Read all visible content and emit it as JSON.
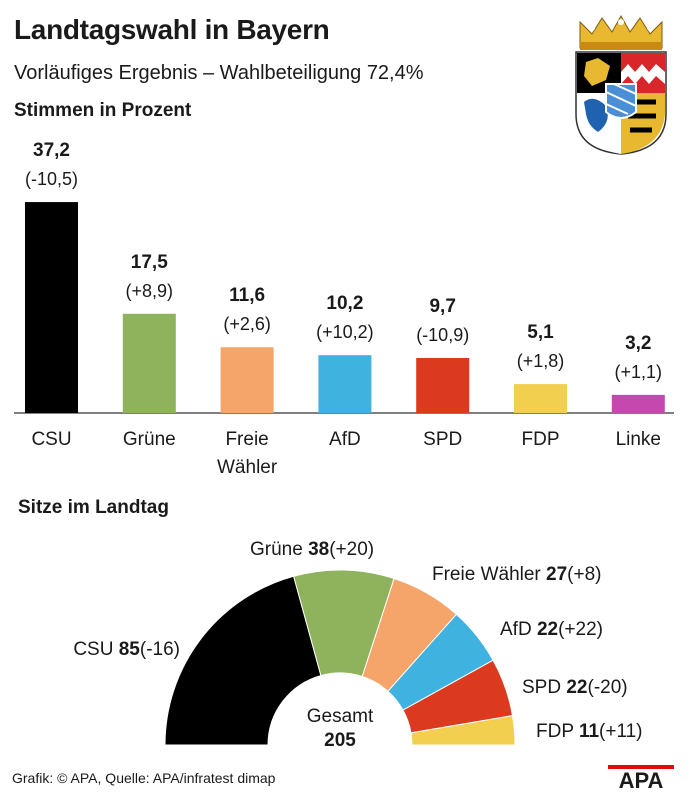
{
  "header": {
    "title": "Landtagswahl in Bayern",
    "subtitle": "Vorläufiges Ergebnis – Wahlbeteiligung 72,4%"
  },
  "footer": {
    "credit": "Grafik: © APA, Quelle: APA/infratest dimap",
    "logo_text": "APA"
  },
  "chart_data": [
    {
      "type": "bar",
      "title": "Stimmen in Prozent",
      "categories": [
        "CSU",
        "Grüne",
        "Freie Wähler",
        "AfD",
        "SPD",
        "FDP",
        "Linke"
      ],
      "category_lines": [
        [
          "CSU"
        ],
        [
          "Grüne"
        ],
        [
          "Freie",
          "Wähler"
        ],
        [
          "AfD"
        ],
        [
          "SPD"
        ],
        [
          "FDP"
        ],
        [
          "Linke"
        ]
      ],
      "values": [
        37.2,
        17.5,
        11.6,
        10.2,
        9.7,
        5.1,
        3.2
      ],
      "value_labels": [
        "37,2",
        "17,5",
        "11,6",
        "10,2",
        "9,7",
        "5,1",
        "3,2"
      ],
      "change_labels": [
        "(-10,5)",
        "(+8,9)",
        "(+2,6)",
        "(+10,2)",
        "(-10,9)",
        "(+1,8)",
        "(+1,1)"
      ],
      "colors": [
        "#000000",
        "#8fb35c",
        "#f5a46a",
        "#3fb2e0",
        "#dc3a1e",
        "#f2cf4f",
        "#c548b0"
      ],
      "ylim": [
        0,
        40
      ]
    },
    {
      "type": "pie",
      "title": "Sitze im Landtag",
      "categories": [
        "CSU",
        "Grüne",
        "Freie Wähler",
        "AfD",
        "SPD",
        "FDP"
      ],
      "values": [
        85,
        38,
        27,
        22,
        22,
        11
      ],
      "change_labels": [
        "(-16)",
        "(+20)",
        "(+8)",
        "(+22)",
        "(-20)",
        "(+11)"
      ],
      "colors": [
        "#000000",
        "#8fb35c",
        "#f5a46a",
        "#3fb2e0",
        "#dc3a1e",
        "#f2cf4f"
      ],
      "total_label": "Gesamt",
      "total": "205"
    }
  ]
}
